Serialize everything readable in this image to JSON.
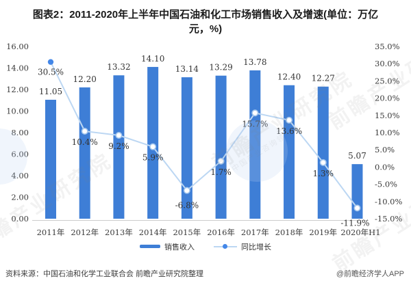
{
  "title": {
    "line1": "图表2：2011-2020年上半年中国石油和化工市场销售收入及增速(单位：万亿",
    "line2": "元，%)",
    "full": "图表2：2011-2020年上半年中国石油和化工市场销售收入及增速(单位：万亿元，%)"
  },
  "chart_data": {
    "type": "bar",
    "subtype": "bar-line-combo",
    "categories": [
      "2011年",
      "2012年",
      "2013年",
      "2014年",
      "2015年",
      "2016年",
      "2017年",
      "2018年",
      "2019年",
      "2020年H1"
    ],
    "series": [
      {
        "name": "销售收入",
        "type": "bar",
        "axis": "left",
        "color": "#3E7ED6",
        "values": [
          11.05,
          12.2,
          13.32,
          14.1,
          13.14,
          13.29,
          13.78,
          12.4,
          12.27,
          5.07
        ],
        "labels": [
          "11.05",
          "12.20",
          "13.32",
          "14.10",
          "13.14",
          "13.29",
          "13.78",
          "12.40",
          "12.27",
          "5.07"
        ]
      },
      {
        "name": "同比增长",
        "type": "line",
        "axis": "right",
        "line_color": "#BCD7F3",
        "marker_fill": "#FFFFFF",
        "marker_stroke": "#A5C7EE",
        "first_marker_color": "#4387E8",
        "values": [
          30.5,
          10.4,
          9.2,
          5.9,
          -6.8,
          1.7,
          15.7,
          13.6,
          1.3,
          -11.9
        ],
        "labels": [
          "30.5%",
          "10.4%",
          "9.2%",
          "5.9%",
          "-6.8%",
          "1.7%",
          "15.7%",
          "13.6%",
          "1.3%",
          "-11.9%"
        ]
      }
    ],
    "left_axis": {
      "min": 0,
      "max": 16,
      "step": 2,
      "tick_labels": [
        "16.00",
        "14.00",
        "12.00",
        "10.00",
        "8.00",
        "6.00",
        "4.00",
        "2.00",
        "0.00"
      ]
    },
    "right_axis": {
      "min": -15,
      "max": 35,
      "step": 5,
      "tick_labels": [
        "35.0%",
        "30.0%",
        "25.0%",
        "20.0%",
        "15.0%",
        "10.0%",
        "5.0%",
        "0.0%",
        "-5.0%",
        "-10.0%",
        "-15.0%"
      ]
    },
    "grid": false,
    "legend_position": "bottom",
    "axis_line_color": "#cccccc",
    "tick_text_color": "#3a3a3a",
    "value_label_color": "#333333"
  },
  "legend": [
    {
      "label": "销售收入",
      "swatch": "bar"
    },
    {
      "label": "同比增长",
      "swatch": "line-with-dot"
    }
  ],
  "footer": {
    "source": "资料来源：中国石油和化学工业联合会 前瞻产业研究院整理",
    "credit": "@前瞻经济学人APP"
  },
  "watermark": {
    "text": "前瞻产业研究院",
    "subtext": "中国产业咨询领导者"
  }
}
